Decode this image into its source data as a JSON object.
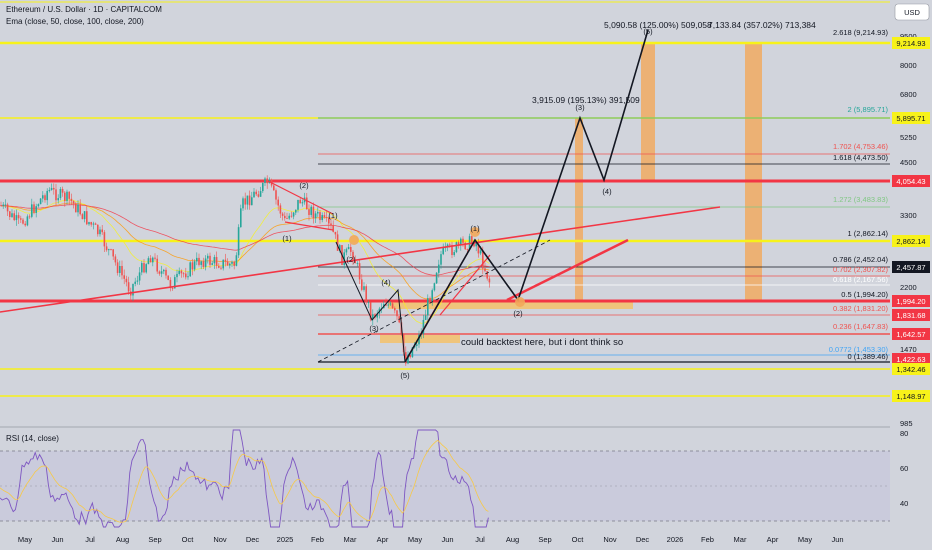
{
  "header": {
    "title": "Ethereum / U.S. Dollar · 1D · CAPITALCOM",
    "indicator": "Ema (close, 50, close, 100, close, 200)",
    "currency_button": "USD"
  },
  "rsi_label": "RSI (14, close)",
  "colors": {
    "background": "#d1d4dc",
    "yellow": "#f7f21a",
    "red": "#f23645",
    "orange": "#f2a85a",
    "up": "#26a69a",
    "down": "#ef5350",
    "rsi_line": "#7e57c2"
  },
  "chart_data": {
    "type": "candlestick",
    "y_scale": "log",
    "y_axis_ticks": [
      9500,
      8000,
      6800,
      5250,
      4500,
      3300,
      2200,
      1470,
      985
    ],
    "x_axis_ticks": [
      "May",
      "Jun",
      "Jul",
      "Aug",
      "Sep",
      "Oct",
      "Nov",
      "Dec",
      "2025",
      "Feb",
      "Mar",
      "Apr",
      "May",
      "Jun",
      "Jul",
      "Aug",
      "Sep",
      "Oct",
      "Nov",
      "Dec",
      "2026",
      "Feb",
      "Mar",
      "Apr",
      "May",
      "Jun"
    ],
    "price_badges": [
      {
        "value": "9,214.93",
        "color": "yellow"
      },
      {
        "value": "5,895.71",
        "color": "yellow"
      },
      {
        "value": "4,054.43",
        "color": "red"
      },
      {
        "value": "2,862.14",
        "color": "yellow"
      },
      {
        "value": "2,457.87",
        "color": "dark"
      },
      {
        "value": "1,994.20",
        "color": "red"
      },
      {
        "value": "1,831.68",
        "color": "red"
      },
      {
        "value": "1,642.57",
        "color": "red"
      },
      {
        "value": "1,422.63",
        "color": "red"
      },
      {
        "value": "1,342.46",
        "color": "yellow"
      },
      {
        "value": "1,148.97",
        "color": "yellow"
      }
    ],
    "fib_levels": [
      {
        "label": "2.618 (9,214.93)",
        "color": "#131722"
      },
      {
        "label": "2 (5,895.71)",
        "color": "#26a69a"
      },
      {
        "label": "1.702 (4,753.46)",
        "color": "#ef5350"
      },
      {
        "label": "1.618 (4,473.50)",
        "color": "#131722"
      },
      {
        "label": "1.272 (3,483.83)",
        "color": "#81c784"
      },
      {
        "label": "1 (2,862.14)",
        "color": "#131722"
      },
      {
        "label": "0.786 (2,452.04)",
        "color": "#131722"
      },
      {
        "label": "0.702 (2,307.82)",
        "color": "#ef5350"
      },
      {
        "label": "0.618 (2,167.56)",
        "color": "#ffffff"
      },
      {
        "label": "0.5 (1,994.20)",
        "color": "#131722"
      },
      {
        "label": "0.382 (1,831.20)",
        "color": "#ef5350"
      },
      {
        "label": "0.236 (1,647.83)",
        "color": "#ef5350"
      },
      {
        "label": "0.0772 (1,453.30)",
        "color": "#42a5f5"
      },
      {
        "label": "0 (1,389.46)",
        "color": "#131722"
      }
    ],
    "projections": [
      {
        "label": "5,090.58 (125.00%) 509,058"
      },
      {
        "label": "7,133.84 (357.02%) 713,384"
      },
      {
        "label": "3,915.09 (195.13%) 391,509"
      }
    ],
    "wave_labels": [
      "(1)",
      "(2)",
      "(3)",
      "(4)",
      "(5)",
      "(1)",
      "(2)",
      "(3)",
      "(4)",
      "(5)",
      "(2)",
      "(1)"
    ],
    "annotation": "could backtest here, but i dont think so",
    "rsi": {
      "ticks": [
        80.0,
        60.0,
        40.0
      ],
      "overbought": 70,
      "oversold": 30
    }
  }
}
